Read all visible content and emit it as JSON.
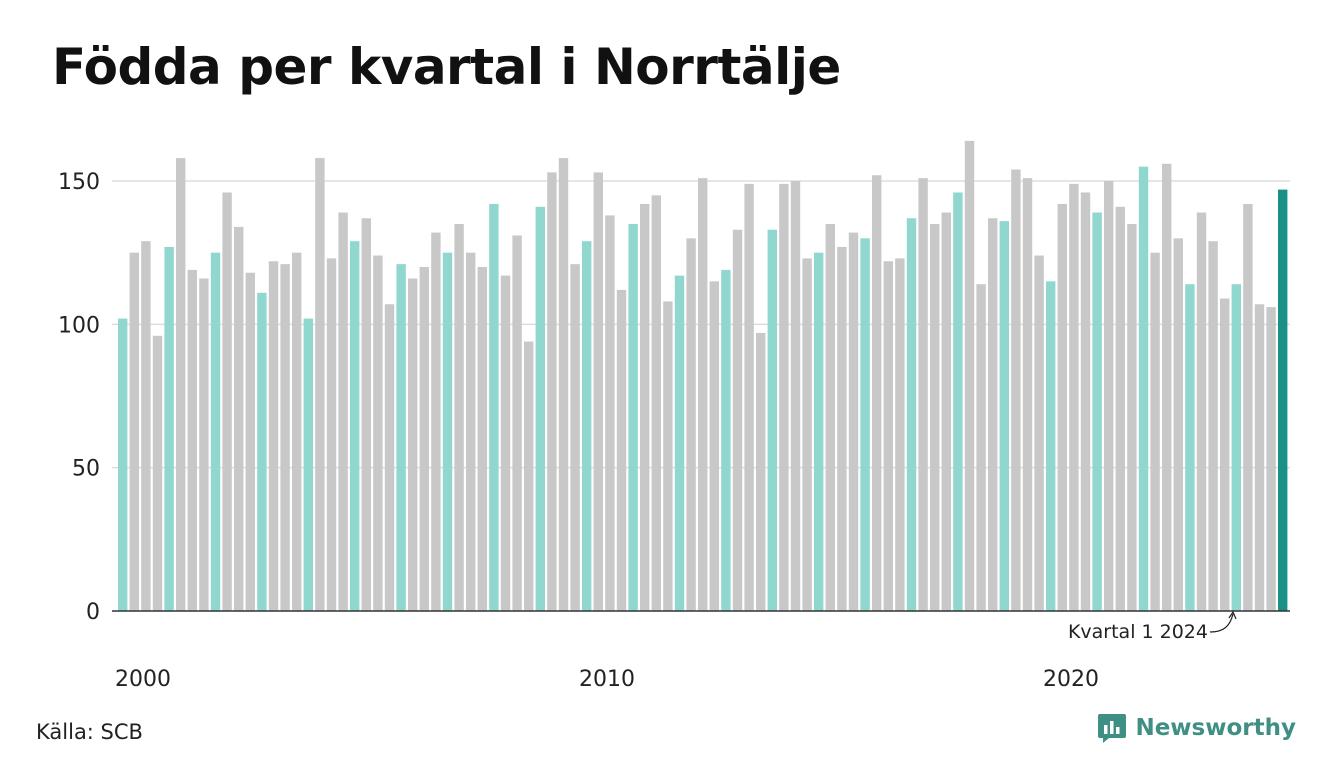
{
  "title": "Födda per kvartal i Norrtälje",
  "source": "Källa: SCB",
  "brand": {
    "name": "Newsworthy",
    "icon": "newsworthy-logo-icon"
  },
  "colors": {
    "q1": "#8fd7cf",
    "other": "#c8c8c8",
    "latest": "#1a9186",
    "grid": "#dddddd",
    "brand": "#3f8f85"
  },
  "chart_data": {
    "type": "bar",
    "title": "Födda per kvartal i Norrtälje",
    "xlabel": "",
    "ylabel": "",
    "ylim": [
      0,
      165
    ],
    "yticks": [
      0,
      50,
      100,
      150
    ],
    "xtick_labels": [
      "2000",
      "2010",
      "2020"
    ],
    "grid": true,
    "legend": "none",
    "annotation": "Kvartal 1 2024",
    "start": {
      "year": 2000,
      "quarter": 1
    },
    "values": [
      102,
      125,
      129,
      96,
      127,
      158,
      119,
      116,
      125,
      146,
      134,
      118,
      111,
      122,
      121,
      125,
      102,
      158,
      123,
      139,
      129,
      137,
      124,
      107,
      121,
      116,
      120,
      132,
      125,
      135,
      125,
      120,
      142,
      117,
      131,
      94,
      141,
      153,
      158,
      121,
      129,
      153,
      138,
      112,
      135,
      142,
      145,
      108,
      117,
      130,
      151,
      115,
      119,
      133,
      149,
      97,
      133,
      149,
      150,
      123,
      125,
      135,
      127,
      132,
      130,
      152,
      122,
      123,
      137,
      151,
      135,
      139,
      146,
      164,
      114,
      137,
      136,
      154,
      151,
      124,
      115,
      142,
      149,
      146,
      139,
      150,
      141,
      135,
      155,
      125,
      156,
      130,
      114,
      139,
      129,
      109,
      114,
      142,
      107,
      106,
      147
    ]
  }
}
